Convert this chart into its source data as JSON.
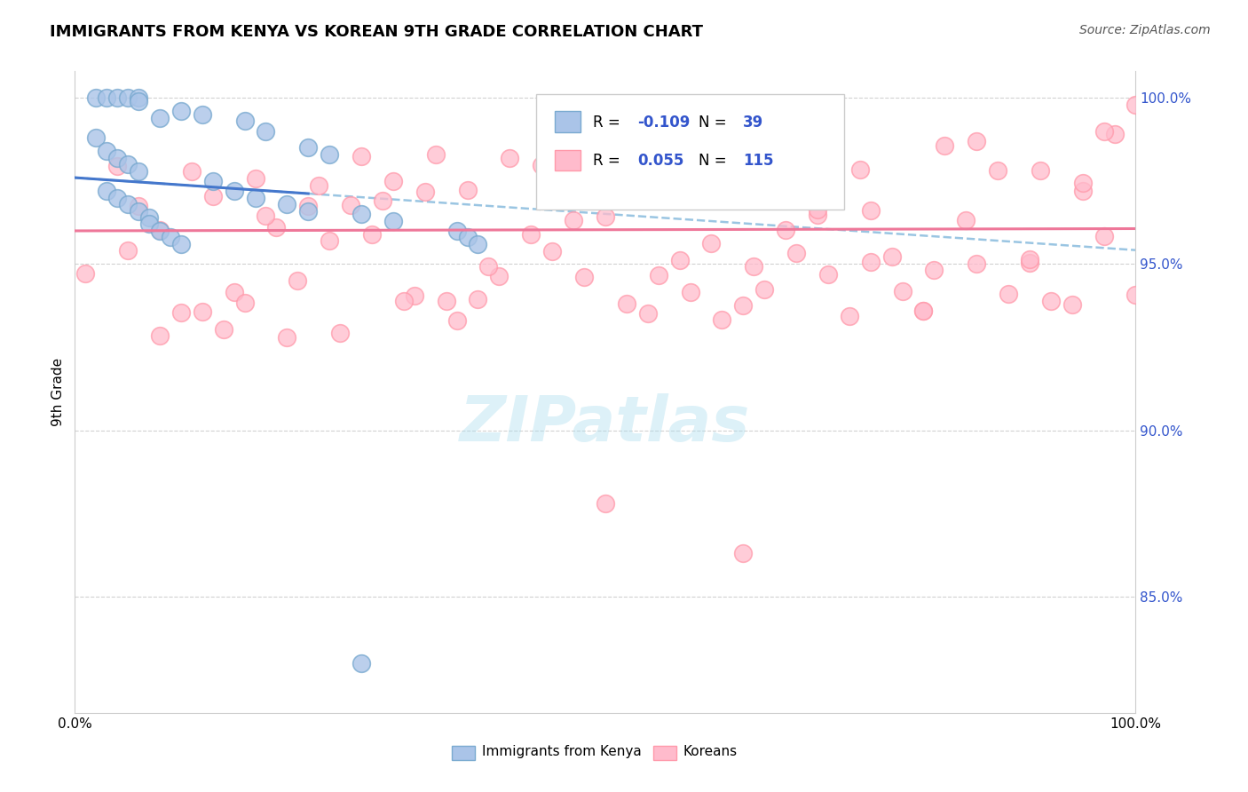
{
  "title": "IMMIGRANTS FROM KENYA VS KOREAN 9TH GRADE CORRELATION CHART",
  "source": "Source: ZipAtlas.com",
  "ylabel": "9th Grade",
  "ytick_labels": [
    "85.0%",
    "90.0%",
    "95.0%",
    "100.0%"
  ],
  "ytick_vals": [
    0.85,
    0.9,
    0.95,
    1.0
  ],
  "xlim": [
    0.0,
    1.0
  ],
  "ylim": [
    0.815,
    1.008
  ],
  "bg_color": "#ffffff",
  "grid_color": "#cccccc",
  "kenya_face_color": "#aac4e8",
  "kenya_edge_color": "#7aaad0",
  "korean_face_color": "#ffbbcc",
  "korean_edge_color": "#ff99aa",
  "kenya_line_color": "#4477cc",
  "korean_line_color": "#ee7799",
  "dashed_line_color": "#88bbdd",
  "legend_R1": "-0.109",
  "legend_N1": "39",
  "legend_R2": "0.055",
  "legend_N2": "115",
  "legend_label1": "Immigrants from Kenya",
  "legend_label2": "Koreans",
  "watermark": "ZIPatlas",
  "title_fontsize": 13,
  "source_fontsize": 10,
  "tick_fontsize": 11,
  "legend_fontsize": 12,
  "R_color": "#3355cc",
  "N_color": "#3355cc"
}
